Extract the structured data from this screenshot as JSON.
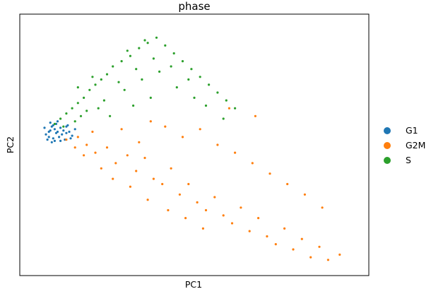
{
  "chart_data": {
    "type": "scatter",
    "title": "phase",
    "xlabel": "PC1",
    "ylabel": "PC2",
    "xlim": [
      -1,
      11
    ],
    "ylim": [
      -5.5,
      4.5
    ],
    "show_ticks": false,
    "grid": false,
    "legend_position": "right",
    "series": [
      {
        "name": "G1",
        "color": "#1f77b4",
        "points": [
          [
            0.0,
            0.0
          ],
          [
            0.1,
            0.2
          ],
          [
            -0.1,
            -0.1
          ],
          [
            0.2,
            0.1
          ],
          [
            0.15,
            -0.25
          ],
          [
            0.3,
            0.0
          ],
          [
            0.05,
            0.35
          ],
          [
            -0.05,
            -0.3
          ],
          [
            0.4,
            0.15
          ],
          [
            0.35,
            -0.2
          ],
          [
            0.25,
            0.3
          ],
          [
            0.1,
            -0.4
          ],
          [
            0.5,
            0.05
          ],
          [
            0.45,
            -0.1
          ],
          [
            0.6,
            0.2
          ],
          [
            0.55,
            -0.3
          ],
          [
            -0.15,
            0.15
          ],
          [
            0.2,
            -0.35
          ],
          [
            0.7,
            0.0
          ],
          [
            0.65,
            0.25
          ],
          [
            0.3,
            0.4
          ],
          [
            0.8,
            -0.15
          ],
          [
            0.05,
            0.05
          ],
          [
            0.15,
            0.25
          ],
          [
            0.4,
            -0.35
          ],
          [
            0.9,
            0.1
          ],
          [
            0.75,
            -0.25
          ],
          [
            0.0,
            -0.2
          ],
          [
            0.25,
            -0.05
          ],
          [
            0.6,
            -0.05
          ]
        ]
      },
      {
        "name": "G2M",
        "color": "#ff7f0e",
        "points": [
          [
            0.6,
            -0.3
          ],
          [
            1.0,
            -0.2
          ],
          [
            1.3,
            -0.5
          ],
          [
            1.6,
            -0.8
          ],
          [
            2.0,
            -0.6
          ],
          [
            2.3,
            -1.2
          ],
          [
            2.7,
            -0.9
          ],
          [
            3.0,
            -1.5
          ],
          [
            3.3,
            -1.0
          ],
          [
            3.6,
            -1.8
          ],
          [
            3.9,
            -2.0
          ],
          [
            4.2,
            -1.4
          ],
          [
            4.5,
            -2.4
          ],
          [
            4.8,
            -2.0
          ],
          [
            5.1,
            -2.7
          ],
          [
            5.4,
            -3.0
          ],
          [
            5.7,
            -2.5
          ],
          [
            6.0,
            -3.2
          ],
          [
            6.3,
            -3.5
          ],
          [
            6.6,
            -2.9
          ],
          [
            6.9,
            -3.8
          ],
          [
            7.2,
            -3.3
          ],
          [
            7.5,
            -4.0
          ],
          [
            7.8,
            -4.3
          ],
          [
            8.1,
            -3.7
          ],
          [
            8.4,
            -4.5
          ],
          [
            8.7,
            -4.1
          ],
          [
            9.0,
            -4.8
          ],
          [
            9.3,
            -4.4
          ],
          [
            9.6,
            -4.9
          ],
          [
            10.0,
            -4.7
          ],
          [
            3.5,
            0.4
          ],
          [
            4.0,
            0.2
          ],
          [
            4.6,
            -0.2
          ],
          [
            5.2,
            0.1
          ],
          [
            5.8,
            -0.5
          ],
          [
            6.4,
            -0.8
          ],
          [
            7.0,
            -1.2
          ],
          [
            7.6,
            -1.6
          ],
          [
            8.2,
            -2.0
          ],
          [
            8.8,
            -2.4
          ],
          [
            9.4,
            -2.9
          ],
          [
            6.2,
            0.9
          ],
          [
            7.1,
            0.6
          ],
          [
            2.2,
            -1.8
          ],
          [
            2.8,
            -2.1
          ],
          [
            3.4,
            -2.6
          ],
          [
            4.1,
            -3.0
          ],
          [
            4.7,
            -3.3
          ],
          [
            5.3,
            -3.7
          ],
          [
            1.8,
            -1.4
          ],
          [
            2.5,
            0.1
          ],
          [
            3.1,
            -0.4
          ],
          [
            1.2,
            -0.9
          ],
          [
            0.9,
            -0.6
          ],
          [
            1.5,
            0.0
          ]
        ]
      },
      {
        "name": "S",
        "color": "#2ca02c",
        "points": [
          [
            0.2,
            0.3
          ],
          [
            0.4,
            0.5
          ],
          [
            0.6,
            0.7
          ],
          [
            0.8,
            0.9
          ],
          [
            1.0,
            1.1
          ],
          [
            1.2,
            1.3
          ],
          [
            1.4,
            1.6
          ],
          [
            1.6,
            1.8
          ],
          [
            1.8,
            2.0
          ],
          [
            2.0,
            2.2
          ],
          [
            2.2,
            2.5
          ],
          [
            2.5,
            2.7
          ],
          [
            2.8,
            2.9
          ],
          [
            3.1,
            3.2
          ],
          [
            3.4,
            3.4
          ],
          [
            3.7,
            3.6
          ],
          [
            4.0,
            3.3
          ],
          [
            4.3,
            3.0
          ],
          [
            4.6,
            2.7
          ],
          [
            4.9,
            2.4
          ],
          [
            5.2,
            2.1
          ],
          [
            5.5,
            1.8
          ],
          [
            5.8,
            1.5
          ],
          [
            6.1,
            1.2
          ],
          [
            6.4,
            0.9
          ],
          [
            1.3,
            0.8
          ],
          [
            1.9,
            1.2
          ],
          [
            2.6,
            1.6
          ],
          [
            3.2,
            2.0
          ],
          [
            3.8,
            2.3
          ],
          [
            4.4,
            1.7
          ],
          [
            5.0,
            1.3
          ],
          [
            2.1,
            0.6
          ],
          [
            2.9,
            1.0
          ],
          [
            3.5,
            1.3
          ],
          [
            0.5,
            0.2
          ],
          [
            0.9,
            0.4
          ],
          [
            1.1,
            0.6
          ],
          [
            1.7,
            0.9
          ],
          [
            2.4,
            1.9
          ],
          [
            3.0,
            2.4
          ],
          [
            3.6,
            2.8
          ],
          [
            4.2,
            2.5
          ],
          [
            4.8,
            2.0
          ],
          [
            5.4,
            1.0
          ],
          [
            6.0,
            0.5
          ],
          [
            2.7,
            3.1
          ],
          [
            3.3,
            3.5
          ],
          [
            1.5,
            2.1
          ],
          [
            1.0,
            1.7
          ]
        ]
      }
    ]
  }
}
